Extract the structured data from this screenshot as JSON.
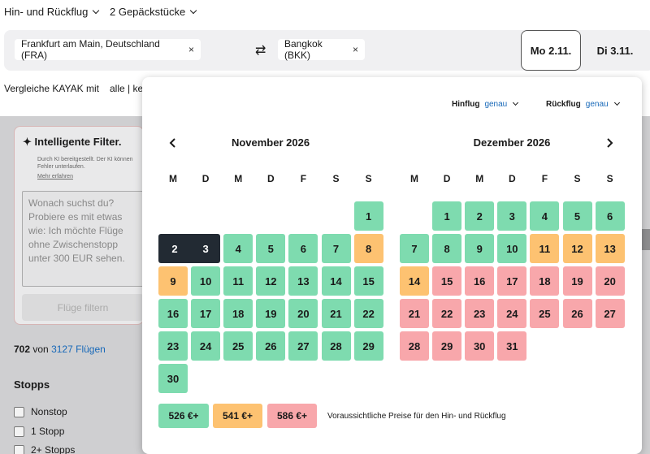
{
  "topbar": {
    "trip_type": "Hin- und Rückflug",
    "bags": "2 Gepäckstücke"
  },
  "search": {
    "origin": "Frankfurt am Main, Deutschland (FRA)",
    "destination": "Bangkok (BKK)",
    "remove_glyph": "×",
    "swap_glyph": "⇄",
    "depart_date": "Mo 2.11.",
    "return_date": "Di 3.11."
  },
  "compare": {
    "label": "Vergleiche KAYAK mit",
    "options": "alle | ke"
  },
  "sidebar": {
    "ai_title": "Intelligente Filter.",
    "ai_icon": "sparkle-icon",
    "ai_note": "Durch KI bereitgestellt. Der KI können Fehler unterlaufen.",
    "ai_link": "Mehr erfahren",
    "placeholder": "Wonach suchst du? Probiere es mit etwas wie: Ich möchte Flüge ohne Zwischenstopp unter 300 EUR sehen.",
    "filter_button": "Flüge filtern",
    "count_shown": "702",
    "count_of": "von",
    "count_total": "3127 Flügen",
    "stops_title": "Stopps",
    "stops": [
      "Nonstop",
      "1 Stopp",
      "2+ Stopps"
    ]
  },
  "datepicker": {
    "outbound_label": "Hinflug",
    "outbound_mode": "genau",
    "return_label": "Rückflug",
    "return_mode": "genau",
    "weekdays": [
      "M",
      "D",
      "M",
      "D",
      "F",
      "S",
      "S"
    ],
    "months": [
      {
        "title": "November 2026",
        "start_col": 6,
        "days": [
          {
            "d": "1",
            "c": "green"
          },
          {
            "d": "2",
            "c": "sel"
          },
          {
            "d": "3",
            "c": "sel"
          },
          {
            "d": "4",
            "c": "green"
          },
          {
            "d": "5",
            "c": "green"
          },
          {
            "d": "6",
            "c": "green"
          },
          {
            "d": "7",
            "c": "green"
          },
          {
            "d": "8",
            "c": "orange"
          },
          {
            "d": "9",
            "c": "orange"
          },
          {
            "d": "10",
            "c": "green"
          },
          {
            "d": "11",
            "c": "green"
          },
          {
            "d": "12",
            "c": "green"
          },
          {
            "d": "13",
            "c": "green"
          },
          {
            "d": "14",
            "c": "green"
          },
          {
            "d": "15",
            "c": "green"
          },
          {
            "d": "16",
            "c": "green"
          },
          {
            "d": "17",
            "c": "green"
          },
          {
            "d": "18",
            "c": "green"
          },
          {
            "d": "19",
            "c": "green"
          },
          {
            "d": "20",
            "c": "green"
          },
          {
            "d": "21",
            "c": "green"
          },
          {
            "d": "22",
            "c": "green"
          },
          {
            "d": "23",
            "c": "green"
          },
          {
            "d": "24",
            "c": "green"
          },
          {
            "d": "25",
            "c": "green"
          },
          {
            "d": "26",
            "c": "green"
          },
          {
            "d": "27",
            "c": "green"
          },
          {
            "d": "28",
            "c": "green"
          },
          {
            "d": "29",
            "c": "green"
          },
          {
            "d": "30",
            "c": "green"
          }
        ]
      },
      {
        "title": "Dezember 2026",
        "start_col": 1,
        "days": [
          {
            "d": "1",
            "c": "green"
          },
          {
            "d": "2",
            "c": "green"
          },
          {
            "d": "3",
            "c": "green"
          },
          {
            "d": "4",
            "c": "green"
          },
          {
            "d": "5",
            "c": "green"
          },
          {
            "d": "6",
            "c": "green"
          },
          {
            "d": "7",
            "c": "green"
          },
          {
            "d": "8",
            "c": "green"
          },
          {
            "d": "9",
            "c": "green"
          },
          {
            "d": "10",
            "c": "green"
          },
          {
            "d": "11",
            "c": "orange"
          },
          {
            "d": "12",
            "c": "orange"
          },
          {
            "d": "13",
            "c": "orange"
          },
          {
            "d": "14",
            "c": "orange"
          },
          {
            "d": "15",
            "c": "red"
          },
          {
            "d": "16",
            "c": "red"
          },
          {
            "d": "17",
            "c": "red"
          },
          {
            "d": "18",
            "c": "red"
          },
          {
            "d": "19",
            "c": "red"
          },
          {
            "d": "20",
            "c": "red"
          },
          {
            "d": "21",
            "c": "red"
          },
          {
            "d": "22",
            "c": "red"
          },
          {
            "d": "23",
            "c": "red"
          },
          {
            "d": "24",
            "c": "red"
          },
          {
            "d": "25",
            "c": "red"
          },
          {
            "d": "26",
            "c": "red"
          },
          {
            "d": "27",
            "c": "red"
          },
          {
            "d": "28",
            "c": "red"
          },
          {
            "d": "29",
            "c": "red"
          },
          {
            "d": "30",
            "c": "red"
          },
          {
            "d": "31",
            "c": "red"
          }
        ]
      }
    ],
    "legend": [
      {
        "label": "526 €+",
        "c": "green"
      },
      {
        "label": "541 €+",
        "c": "orange"
      },
      {
        "label": "586 €+",
        "c": "red"
      }
    ],
    "legend_text": "Voraussichtliche Preise für den Hin- und Rückflug"
  },
  "colors": {
    "green": "#7edbaf",
    "orange": "#fdc271",
    "red": "#f8a7ab",
    "selected": "#222a33",
    "link": "#1768b8"
  }
}
